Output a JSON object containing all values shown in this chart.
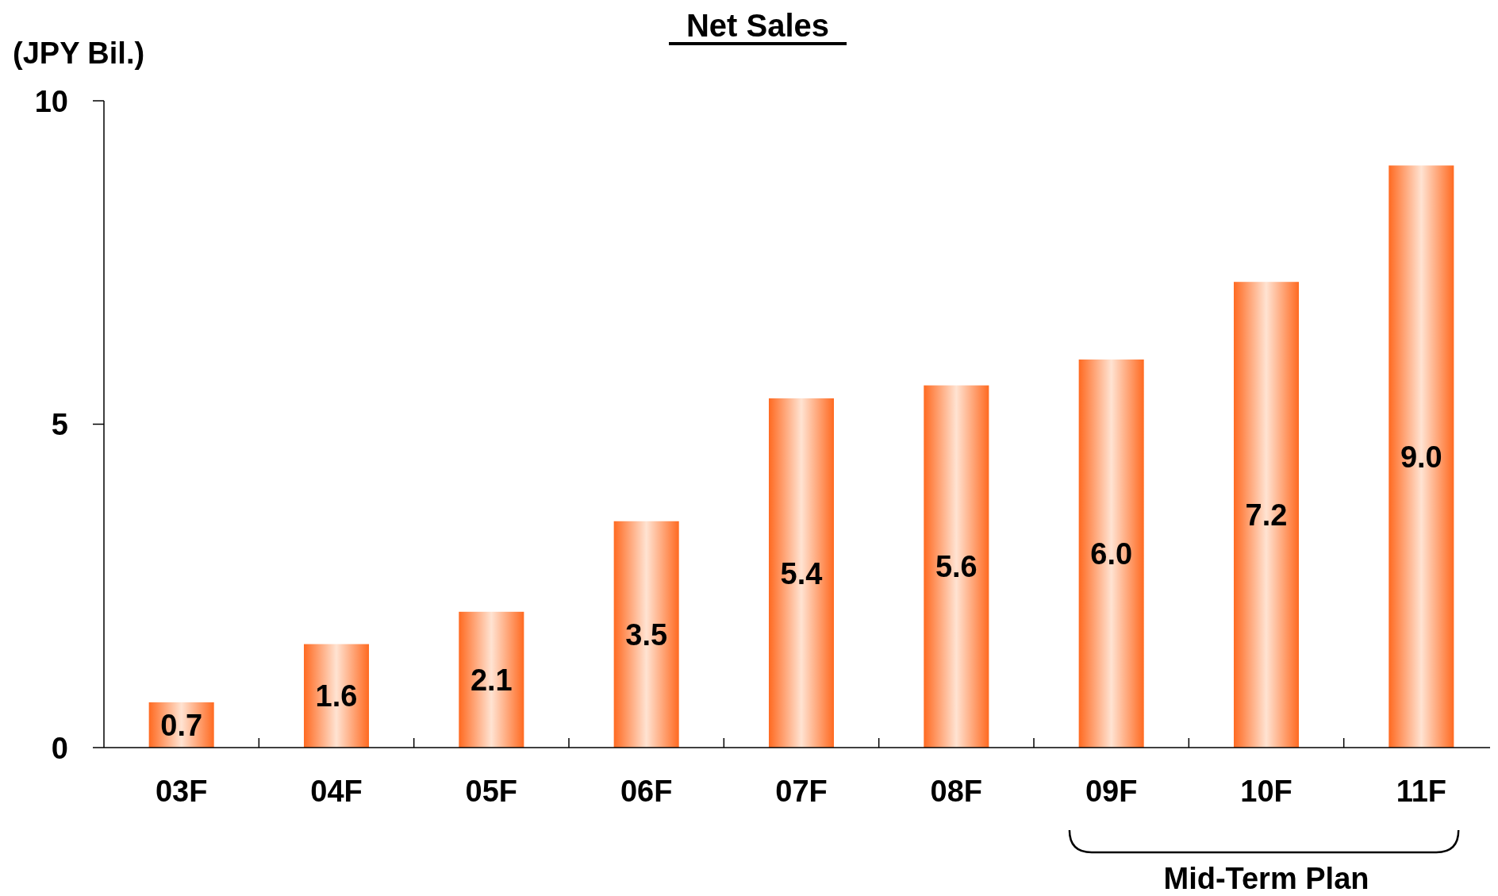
{
  "chart_data": {
    "type": "bar",
    "title": "Net Sales",
    "ylabel": "(JPY Bil.)",
    "categories": [
      "03F",
      "04F",
      "05F",
      "06F",
      "07F",
      "08F",
      "09F",
      "10F",
      "11F"
    ],
    "values": [
      0.7,
      1.6,
      2.1,
      3.5,
      5.4,
      5.6,
      6.0,
      7.2,
      9.0
    ],
    "value_labels": [
      "0.7",
      "1.6",
      "2.1",
      "3.5",
      "5.4",
      "5.6",
      "6.0",
      "7.2",
      "9.0"
    ],
    "color": "#ff6a21",
    "ylim": [
      0,
      10
    ],
    "yticks": [
      0,
      5,
      10
    ],
    "annotations": [
      "Mid-Term Plan"
    ]
  }
}
